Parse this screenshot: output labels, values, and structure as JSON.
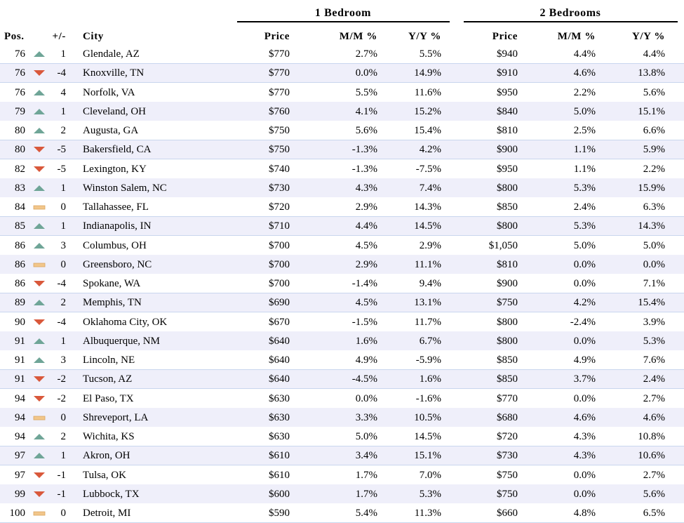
{
  "table": {
    "groups": [
      "1 Bedroom",
      "2 Bedrooms"
    ],
    "columns": [
      "Pos.",
      "+/-",
      "City",
      "Price",
      "M/M %",
      "Y/Y %",
      "Price",
      "M/M %",
      "Y/Y %"
    ],
    "rows": [
      [
        "76",
        "1",
        "Glendale, AZ",
        "$770",
        "2.7%",
        "5.5%",
        "$940",
        "4.4%",
        "4.4%"
      ],
      [
        "76",
        "-4",
        "Knoxville, TN",
        "$770",
        "0.0%",
        "14.9%",
        "$910",
        "4.6%",
        "13.8%"
      ],
      [
        "76",
        "4",
        "Norfolk, VA",
        "$770",
        "5.5%",
        "11.6%",
        "$950",
        "2.2%",
        "5.6%"
      ],
      [
        "79",
        "1",
        "Cleveland, OH",
        "$760",
        "4.1%",
        "15.2%",
        "$840",
        "5.0%",
        "15.1%"
      ],
      [
        "80",
        "2",
        "Augusta, GA",
        "$750",
        "5.6%",
        "15.4%",
        "$810",
        "2.5%",
        "6.6%"
      ],
      [
        "80",
        "-5",
        "Bakersfield, CA",
        "$750",
        "-1.3%",
        "4.2%",
        "$900",
        "1.1%",
        "5.9%"
      ],
      [
        "82",
        "-5",
        "Lexington, KY",
        "$740",
        "-1.3%",
        "-7.5%",
        "$950",
        "1.1%",
        "2.2%"
      ],
      [
        "83",
        "1",
        "Winston Salem, NC",
        "$730",
        "4.3%",
        "7.4%",
        "$800",
        "5.3%",
        "15.9%"
      ],
      [
        "84",
        "0",
        "Tallahassee, FL",
        "$720",
        "2.9%",
        "14.3%",
        "$850",
        "2.4%",
        "6.3%"
      ],
      [
        "85",
        "1",
        "Indianapolis, IN",
        "$710",
        "4.4%",
        "14.5%",
        "$800",
        "5.3%",
        "14.3%"
      ],
      [
        "86",
        "3",
        "Columbus, OH",
        "$700",
        "4.5%",
        "2.9%",
        "$1,050",
        "5.0%",
        "5.0%"
      ],
      [
        "86",
        "0",
        "Greensboro, NC",
        "$700",
        "2.9%",
        "11.1%",
        "$810",
        "0.0%",
        "0.0%"
      ],
      [
        "86",
        "-4",
        "Spokane, WA",
        "$700",
        "-1.4%",
        "9.4%",
        "$900",
        "0.0%",
        "7.1%"
      ],
      [
        "89",
        "2",
        "Memphis, TN",
        "$690",
        "4.5%",
        "13.1%",
        "$750",
        "4.2%",
        "15.4%"
      ],
      [
        "90",
        "-4",
        "Oklahoma City, OK",
        "$670",
        "-1.5%",
        "11.7%",
        "$800",
        "-2.4%",
        "3.9%"
      ],
      [
        "91",
        "1",
        "Albuquerque, NM",
        "$640",
        "1.6%",
        "6.7%",
        "$800",
        "0.0%",
        "5.3%"
      ],
      [
        "91",
        "3",
        "Lincoln, NE",
        "$640",
        "4.9%",
        "-5.9%",
        "$850",
        "4.9%",
        "7.6%"
      ],
      [
        "91",
        "-2",
        "Tucson, AZ",
        "$640",
        "-4.5%",
        "1.6%",
        "$850",
        "3.7%",
        "2.4%"
      ],
      [
        "94",
        "-2",
        "El Paso, TX",
        "$630",
        "0.0%",
        "-1.6%",
        "$770",
        "0.0%",
        "2.7%"
      ],
      [
        "94",
        "0",
        "Shreveport, LA",
        "$630",
        "3.3%",
        "10.5%",
        "$680",
        "4.6%",
        "4.6%"
      ],
      [
        "94",
        "2",
        "Wichita, KS",
        "$630",
        "5.0%",
        "14.5%",
        "$720",
        "4.3%",
        "10.8%"
      ],
      [
        "97",
        "1",
        "Akron, OH",
        "$610",
        "3.4%",
        "15.1%",
        "$730",
        "4.3%",
        "10.6%"
      ],
      [
        "97",
        "-1",
        "Tulsa, OK",
        "$610",
        "1.7%",
        "7.0%",
        "$750",
        "0.0%",
        "2.7%"
      ],
      [
        "99",
        "-1",
        "Lubbock, TX",
        "$600",
        "1.7%",
        "5.3%",
        "$750",
        "0.0%",
        "5.6%"
      ],
      [
        "100",
        "0",
        "Detroit, MI",
        "$590",
        "5.4%",
        "11.3%",
        "$660",
        "4.8%",
        "6.5%"
      ]
    ]
  }
}
